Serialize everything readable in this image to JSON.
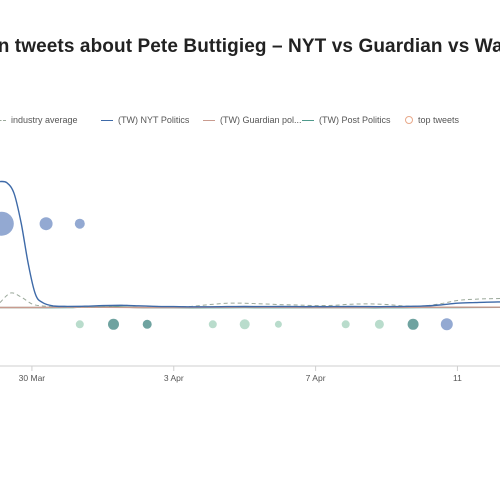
{
  "title": "on tweets about Pete Buttigieg  – NYT vs Guardian vs Wash",
  "legend": [
    {
      "label": "industry average",
      "style": "dashed",
      "color": "#9aa89a"
    },
    {
      "label": "(TW) NYT Politics",
      "style": "solid",
      "color": "#3e6aa8"
    },
    {
      "label": "(TW) Guardian pol...",
      "style": "solid",
      "color": "#c99b8f"
    },
    {
      "label": "(TW) Post Politics",
      "style": "solid",
      "color": "#4f9a8c"
    },
    {
      "label": "top tweets",
      "style": "circle",
      "color": "#e8a98a"
    }
  ],
  "chart_data": {
    "type": "line",
    "title": "on tweets about Pete Buttigieg  – NYT vs Guardian vs Wash",
    "x_tick_labels": [
      "30 Mar",
      "3 Apr",
      "7 Apr",
      "11"
    ],
    "x_domain": [
      -0.9,
      13.2
    ],
    "x_tick_positions": [
      0,
      4,
      8,
      12
    ],
    "y_domain": [
      0,
      100
    ],
    "y_axis_labels": "none",
    "grid": false,
    "legend_position": "top",
    "series": [
      {
        "name": "industry average",
        "style": "dashed",
        "color": "#9aa89a",
        "x": [
          -0.9,
          -0.6,
          -0.3,
          0,
          0.3,
          0.8,
          1.5,
          2,
          2.5,
          3,
          3.5,
          4,
          4.5,
          5,
          5.5,
          6,
          6.5,
          7,
          7.5,
          8,
          8.5,
          9,
          9.5,
          10,
          10.5,
          11,
          11.5,
          12,
          12.5,
          13.2
        ],
        "y": [
          4,
          11,
          8,
          3,
          1.5,
          0.8,
          0.8,
          1,
          2,
          1.5,
          1.2,
          1,
          1.2,
          2.5,
          3.5,
          3.5,
          3,
          2.5,
          2.2,
          1.8,
          2,
          2.8,
          3,
          2.6,
          1.5,
          1.5,
          3,
          5.5,
          6.5,
          7
        ]
      },
      {
        "name": "(TW) NYT Politics",
        "style": "solid",
        "color": "#3e6aa8",
        "x": [
          -0.9,
          -0.7,
          -0.5,
          -0.3,
          -0.1,
          0.1,
          0.3,
          0.6,
          1,
          1.5,
          2,
          2.5,
          3,
          3.5,
          4,
          4.5,
          5,
          5.5,
          6,
          6.5,
          7,
          7.5,
          8,
          8.5,
          9,
          9.5,
          10,
          10.5,
          11,
          11.5,
          12,
          12.5,
          13.2
        ],
        "y": [
          93,
          92,
          84,
          62,
          32,
          10,
          4,
          1.5,
          1.2,
          1.3,
          1.8,
          2,
          1.6,
          1.2,
          1,
          0.9,
          0.9,
          1,
          1.1,
          1,
          1.1,
          1,
          1,
          1,
          1.1,
          1,
          1,
          1.2,
          1.4,
          2.2,
          3.5,
          4,
          4.5
        ]
      },
      {
        "name": "(TW) Guardian pol...",
        "style": "solid",
        "color": "#c99b8f",
        "x": [
          -0.9,
          0,
          1,
          2,
          3,
          4,
          5,
          6,
          7,
          8,
          9,
          10,
          11,
          12,
          13.2
        ],
        "y": [
          0.4,
          0.4,
          0.5,
          0.5,
          0.4,
          0.4,
          0.5,
          0.6,
          0.5,
          0.4,
          0.4,
          0.5,
          0.5,
          0.6,
          0.6
        ]
      },
      {
        "name": "(TW) Post Politics",
        "style": "solid",
        "color": "#4f9a8c",
        "x": [
          -0.9,
          0,
          1,
          1.5,
          2,
          2.5,
          3,
          4,
          5,
          6,
          7,
          8,
          9,
          10,
          11,
          12,
          13.2
        ],
        "y": [
          0.3,
          0.3,
          0.3,
          0.9,
          1.3,
          0.9,
          0.3,
          0.2,
          0.2,
          0.3,
          0.2,
          0.2,
          0.2,
          0.2,
          0.3,
          0.4,
          0.5
        ]
      }
    ],
    "top_tweets": {
      "name": "top tweets",
      "upper_row_y": 62,
      "lower_row_y": -12,
      "points": [
        {
          "x": -0.85,
          "row": "upper",
          "size": 12,
          "color": "#93a9d2"
        },
        {
          "x": 0.4,
          "row": "upper",
          "size": 6.5,
          "color": "#93a9d2"
        },
        {
          "x": 1.35,
          "row": "upper",
          "size": 5,
          "color": "#93a9d2"
        },
        {
          "x": 1.35,
          "row": "lower",
          "size": 4,
          "color": "#b9dccc"
        },
        {
          "x": 2.3,
          "row": "lower",
          "size": 5.5,
          "color": "#6fa3a0"
        },
        {
          "x": 3.25,
          "row": "lower",
          "size": 4.5,
          "color": "#6fa3a0"
        },
        {
          "x": 5.1,
          "row": "lower",
          "size": 4,
          "color": "#b9dccc"
        },
        {
          "x": 6.0,
          "row": "lower",
          "size": 5,
          "color": "#b9dccc"
        },
        {
          "x": 6.95,
          "row": "lower",
          "size": 3.5,
          "color": "#b9dccc"
        },
        {
          "x": 8.85,
          "row": "lower",
          "size": 4,
          "color": "#b9dccc"
        },
        {
          "x": 9.8,
          "row": "lower",
          "size": 4.5,
          "color": "#b9dccc"
        },
        {
          "x": 10.75,
          "row": "lower",
          "size": 5.5,
          "color": "#6fa3a0"
        },
        {
          "x": 11.7,
          "row": "lower",
          "size": 6,
          "color": "#93a9d2"
        }
      ]
    }
  }
}
